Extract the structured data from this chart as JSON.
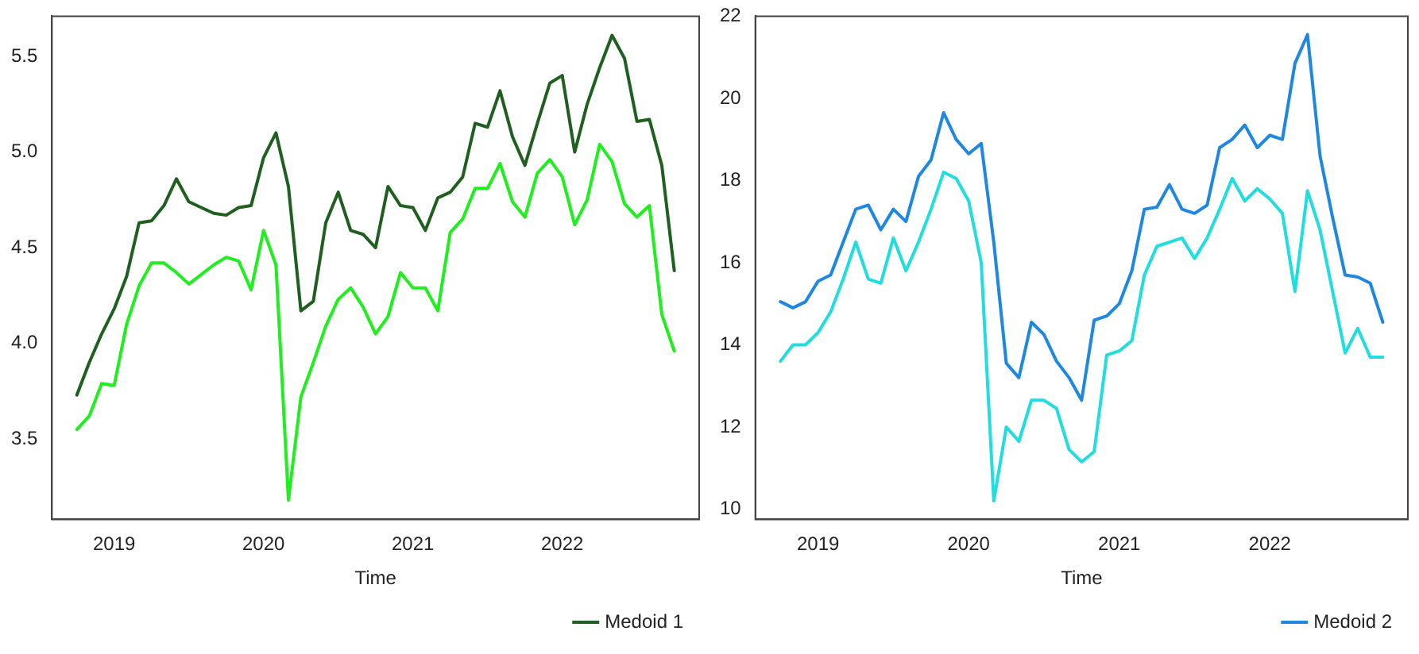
{
  "chart_data": [
    {
      "type": "line",
      "xlabel": "Time",
      "legend": "bottom right",
      "x": [
        "2018-10",
        "2018-11",
        "2018-12",
        "2019-01",
        "2019-02",
        "2019-03",
        "2019-04",
        "2019-05",
        "2019-06",
        "2019-07",
        "2019-08",
        "2019-09",
        "2019-10",
        "2019-11",
        "2019-12",
        "2020-01",
        "2020-02",
        "2020-03",
        "2020-04",
        "2020-05",
        "2020-06",
        "2020-07",
        "2020-08",
        "2020-09",
        "2020-10",
        "2020-11",
        "2020-12",
        "2021-01",
        "2021-02",
        "2021-03",
        "2021-04",
        "2021-05",
        "2021-06",
        "2021-07",
        "2021-08",
        "2021-09",
        "2021-10",
        "2021-11",
        "2021-12",
        "2022-01",
        "2022-02",
        "2022-03",
        "2022-04",
        "2022-05",
        "2022-06",
        "2022-07",
        "2022-08",
        "2022-09",
        "2022-10"
      ],
      "series": [
        {
          "name": "Medoid 1",
          "color": "#1f5f1f",
          "values": [
            3.73,
            3.9,
            4.05,
            4.18,
            4.35,
            4.63,
            4.64,
            4.72,
            4.86,
            4.74,
            4.71,
            4.68,
            4.67,
            4.71,
            4.72,
            4.97,
            5.1,
            4.82,
            4.17,
            4.22,
            4.63,
            4.79,
            4.59,
            4.57,
            4.5,
            4.82,
            4.72,
            4.71,
            4.59,
            4.76,
            4.79,
            4.87,
            5.15,
            5.13,
            5.32,
            5.08,
            4.93,
            5.15,
            5.36,
            5.4,
            5.0,
            5.25,
            5.44,
            5.61,
            5.49,
            5.16,
            5.17,
            4.93,
            4.38
          ]
        },
        {
          "color": "#1fee1f",
          "values": [
            3.55,
            3.62,
            3.79,
            3.78,
            4.1,
            4.3,
            4.42,
            4.42,
            4.37,
            4.31,
            4.36,
            4.41,
            4.45,
            4.43,
            4.28,
            4.59,
            4.41,
            3.18,
            3.72,
            3.9,
            4.09,
            4.23,
            4.29,
            4.19,
            4.05,
            4.14,
            4.37,
            4.29,
            4.29,
            4.17,
            4.58,
            4.65,
            4.81,
            4.81,
            4.94,
            4.74,
            4.66,
            4.89,
            4.96,
            4.87,
            4.62,
            4.75,
            5.04,
            4.95,
            4.73,
            4.66,
            4.72,
            4.15,
            3.96
          ]
        }
      ],
      "xlim": [
        "2018-08",
        "2022-12"
      ],
      "xticks": [
        {
          "value": "2019",
          "label": "2019"
        },
        {
          "value": "2020",
          "label": "2020"
        },
        {
          "value": "2021",
          "label": "2021"
        },
        {
          "value": "2022",
          "label": "2022"
        }
      ],
      "ylim": [
        3.08,
        5.71
      ],
      "yticks": [
        {
          "value": 3.5,
          "label": "3.5"
        },
        {
          "value": 4,
          "label": "4.0"
        },
        {
          "value": 4.5,
          "label": "4.5"
        },
        {
          "value": 5,
          "label": "5.0"
        },
        {
          "value": 5.5,
          "label": "5.5"
        }
      ]
    },
    {
      "type": "line",
      "xlabel": "Time",
      "legend": "bottom right",
      "x": [
        "2018-10",
        "2018-11",
        "2018-12",
        "2019-01",
        "2019-02",
        "2019-03",
        "2019-04",
        "2019-05",
        "2019-06",
        "2019-07",
        "2019-08",
        "2019-09",
        "2019-10",
        "2019-11",
        "2019-12",
        "2020-01",
        "2020-02",
        "2020-03",
        "2020-04",
        "2020-05",
        "2020-06",
        "2020-07",
        "2020-08",
        "2020-09",
        "2020-10",
        "2020-11",
        "2020-12",
        "2021-01",
        "2021-02",
        "2021-03",
        "2021-04",
        "2021-05",
        "2021-06",
        "2021-07",
        "2021-08",
        "2021-09",
        "2021-10",
        "2021-11",
        "2021-12",
        "2022-01",
        "2022-02",
        "2022-03",
        "2022-04",
        "2022-05",
        "2022-06",
        "2022-07",
        "2022-08",
        "2022-09",
        "2022-10"
      ],
      "series": [
        {
          "name": "Medoid 2",
          "color": "#1e88e0",
          "values": [
            15.05,
            14.9,
            15.05,
            15.55,
            15.7,
            16.5,
            17.3,
            17.4,
            16.8,
            17.3,
            17.0,
            18.1,
            18.5,
            19.65,
            19.0,
            18.65,
            18.9,
            16.5,
            13.55,
            13.2,
            14.55,
            14.25,
            13.6,
            13.2,
            12.65,
            14.6,
            14.7,
            15.0,
            15.8,
            17.3,
            17.35,
            17.9,
            17.3,
            17.2,
            17.4,
            18.8,
            19.0,
            19.35,
            18.8,
            19.1,
            19.0,
            20.85,
            21.55,
            18.6,
            17.1,
            15.7,
            15.65,
            15.5,
            14.55
          ]
        },
        {
          "color": "#22dddd",
          "values": [
            13.6,
            14.0,
            14.0,
            14.3,
            14.8,
            15.6,
            16.5,
            15.6,
            15.5,
            16.6,
            15.8,
            16.5,
            17.3,
            18.2,
            18.05,
            17.5,
            16.0,
            10.2,
            12.0,
            11.65,
            12.65,
            12.65,
            12.45,
            11.45,
            11.15,
            11.4,
            13.75,
            13.85,
            14.1,
            15.7,
            16.4,
            16.5,
            16.6,
            16.1,
            16.6,
            17.3,
            18.05,
            17.5,
            17.8,
            17.55,
            17.2,
            15.3,
            17.75,
            16.8,
            15.3,
            13.8,
            14.4,
            13.7,
            13.7
          ]
        }
      ],
      "xlim": [
        "2018-08",
        "2022-12"
      ],
      "xticks": [
        {
          "value": "2019",
          "label": "2019"
        },
        {
          "value": "2020",
          "label": "2020"
        },
        {
          "value": "2021",
          "label": "2021"
        },
        {
          "value": "2022",
          "label": "2022"
        }
      ],
      "ylim": [
        9.75,
        22
      ],
      "yticks": [
        10,
        12,
        14,
        16,
        18,
        20,
        22
      ]
    }
  ]
}
